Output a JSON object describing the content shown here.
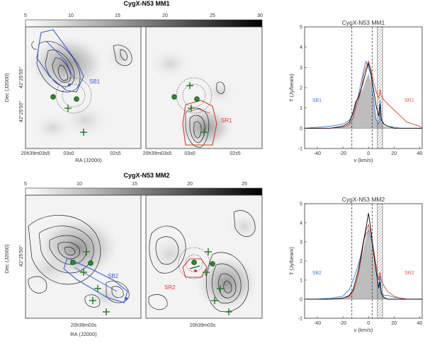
{
  "figure": {
    "row1": {
      "title": "CygX-N53 MM1",
      "colorbar_ticks": [
        "5",
        "10",
        "15",
        "20",
        "25",
        "30"
      ],
      "map_left": {
        "ylabel": "Dec (J2000)",
        "ytick_top": "42°25'55\"",
        "ytick_bottom": "42°25'50\"",
        "xticks": [
          "20h39m03s5",
          "03s0",
          "02s5"
        ],
        "xlabel": "RA (J2000)",
        "outflow_label": "SB1"
      },
      "map_right": {
        "xticks": [
          "20h39m03s5",
          "03s0",
          "02s5"
        ],
        "outflow_label": "SR1"
      }
    },
    "row2": {
      "title": "CygX-N53 MM2",
      "colorbar_ticks": [
        "5",
        "10",
        "15",
        "20",
        "25"
      ],
      "map_left": {
        "ylabel": "Dec (J2000)",
        "ytick": "42°25'50\"",
        "xtick": "20h39m03s",
        "xlabel": "RA (J2000)",
        "outflow_label": "SB2"
      },
      "map_right": {
        "xtick": "20h39m03s",
        "outflow_label": "SR2"
      }
    }
  },
  "colors": {
    "blue_lobe": "#3a5fd9",
    "red_lobe": "#e03a2a",
    "black_line": "#000000",
    "cross": "#1f7a1f",
    "core": "#2a8a2a"
  },
  "chart_data": [
    {
      "type": "line",
      "title": "CygX-N53 MM1",
      "xlabel": "v (km/s)",
      "ylabel": "T (Jy/beam)",
      "xlim": [
        -50,
        42
      ],
      "ylim": [
        -1,
        5
      ],
      "xticks": [
        -40,
        -20,
        0,
        20,
        40
      ],
      "yticks": [
        -1,
        0,
        1,
        2,
        3,
        4,
        5
      ],
      "vlines_dashed": [
        -13,
        3
      ],
      "hatched_band": [
        7,
        11
      ],
      "annotations": [
        {
          "text": "SB1",
          "color": "#3a7de0"
        },
        {
          "text": "SR1",
          "color": "#e05a40"
        }
      ],
      "x": [
        -50,
        -40,
        -30,
        -20,
        -15,
        -12,
        -10,
        -8,
        -6,
        -4,
        -2,
        0,
        2,
        4,
        6,
        8,
        9,
        10,
        12,
        15,
        20,
        25,
        30,
        40,
        42
      ],
      "series": [
        {
          "name": "blue",
          "color": "#3a7de0",
          "values": [
            0.0,
            0.05,
            0.1,
            0.2,
            0.4,
            0.7,
            1.2,
            1.6,
            2.2,
            2.8,
            3.3,
            3.0,
            2.6,
            1.4,
            0.4,
            0.2,
            1.4,
            0.5,
            0.2,
            0.1,
            0.05,
            0.0,
            0.0,
            0.0,
            0.0
          ]
        },
        {
          "name": "black",
          "color": "#000000",
          "values": [
            0.0,
            0.0,
            0.0,
            0.1,
            0.3,
            0.8,
            1.3,
            1.5,
            1.9,
            2.3,
            2.8,
            3.2,
            2.7,
            1.9,
            1.1,
            0.6,
            1.2,
            0.4,
            0.2,
            0.1,
            0.0,
            0.0,
            0.0,
            0.0,
            0.0
          ]
        },
        {
          "name": "red",
          "color": "#e03a2a",
          "values": [
            0.0,
            0.0,
            0.0,
            0.05,
            0.2,
            0.5,
            1.0,
            1.4,
            1.8,
            2.6,
            3.0,
            3.3,
            2.9,
            2.3,
            1.8,
            1.5,
            1.9,
            1.6,
            1.4,
            1.2,
            0.9,
            0.6,
            0.3,
            0.1,
            0.0
          ]
        },
        {
          "name": "gray",
          "color": "#bbbbbb",
          "values": [
            0.0,
            0.0,
            0.0,
            0.05,
            0.25,
            0.7,
            1.2,
            1.45,
            1.7,
            2.0,
            2.4,
            2.7,
            2.3,
            1.4,
            0.5,
            0.2,
            1.0,
            0.3,
            0.1,
            0.05,
            0.0,
            0.0,
            0.0,
            0.0,
            0.0
          ]
        }
      ]
    },
    {
      "type": "line",
      "title": "CygX-N53 MM2",
      "xlabel": "v (km/s)",
      "ylabel": "T (Jy/beam)",
      "xlim": [
        -50,
        42
      ],
      "ylim": [
        -1,
        5
      ],
      "xticks": [
        -40,
        -20,
        0,
        20,
        40
      ],
      "yticks": [
        -1,
        0,
        1,
        2,
        3,
        4,
        5
      ],
      "vlines_dashed": [
        -13,
        3
      ],
      "hatched_band": [
        7,
        11
      ],
      "annotations": [
        {
          "text": "SB2",
          "color": "#3a7de0"
        },
        {
          "text": "SR2",
          "color": "#e05a40"
        }
      ],
      "x": [
        -50,
        -40,
        -30,
        -20,
        -15,
        -12,
        -10,
        -8,
        -6,
        -4,
        -2,
        0,
        2,
        4,
        6,
        8,
        9,
        10,
        12,
        15,
        20,
        25,
        30,
        40,
        42
      ],
      "series": [
        {
          "name": "blue",
          "color": "#3a7de0",
          "values": [
            0.0,
            0.0,
            0.05,
            0.15,
            0.5,
            1.0,
            1.4,
            1.8,
            2.3,
            3.0,
            3.4,
            3.6,
            3.2,
            2.4,
            1.4,
            0.5,
            1.2,
            0.4,
            0.2,
            0.2,
            0.1,
            0.05,
            0.0,
            0.0,
            0.0
          ]
        },
        {
          "name": "black",
          "color": "#000000",
          "values": [
            0.0,
            0.0,
            0.0,
            0.05,
            0.2,
            0.5,
            1.0,
            1.5,
            2.2,
            3.0,
            3.7,
            4.5,
            3.6,
            2.4,
            1.5,
            0.6,
            0.9,
            0.3,
            0.1,
            0.0,
            0.0,
            0.0,
            0.0,
            0.0,
            0.0
          ]
        },
        {
          "name": "red",
          "color": "#e03a2a",
          "values": [
            0.0,
            0.0,
            0.0,
            0.05,
            0.15,
            0.4,
            0.8,
            1.3,
            2.0,
            2.9,
            3.6,
            3.9,
            3.4,
            2.6,
            1.8,
            1.0,
            1.4,
            1.0,
            0.7,
            0.4,
            0.15,
            0.05,
            0.0,
            0.0,
            0.0
          ]
        },
        {
          "name": "gray",
          "color": "#bbbbbb",
          "values": [
            0.0,
            0.0,
            0.0,
            0.05,
            0.15,
            0.4,
            0.8,
            1.3,
            1.9,
            2.6,
            3.2,
            3.8,
            3.1,
            2.1,
            1.2,
            0.4,
            0.8,
            0.25,
            0.1,
            0.0,
            0.0,
            0.0,
            0.0,
            0.0,
            0.0
          ]
        }
      ]
    }
  ]
}
